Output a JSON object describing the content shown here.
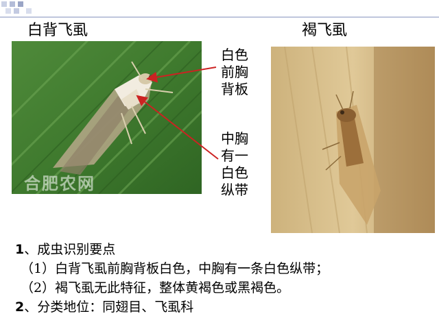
{
  "captions": {
    "left": "白背飞虱",
    "right": "褐飞虱"
  },
  "watermark": "合肥农网",
  "annotations": {
    "top_label": [
      "白色",
      "前胸",
      "背板"
    ],
    "bottom_label": [
      "中胸",
      "有一",
      "白色",
      "纵带"
    ]
  },
  "notes": {
    "item1": {
      "num": "1",
      "text": "、成虫识别要点"
    },
    "sub1": "（1）白背飞虱前胸背板白色，中胸有一条白色纵带；",
    "sub2": "（2）褐飞虱无此特征，整体黄褐色或黑褐色。",
    "item2": {
      "num": "2",
      "text": "、分类地位：同翅目、飞虱科"
    }
  },
  "colors": {
    "arrow": "#cc2222",
    "accent_squares": "#aab4cf"
  },
  "icons": [
    "slide-corner-decoration"
  ]
}
